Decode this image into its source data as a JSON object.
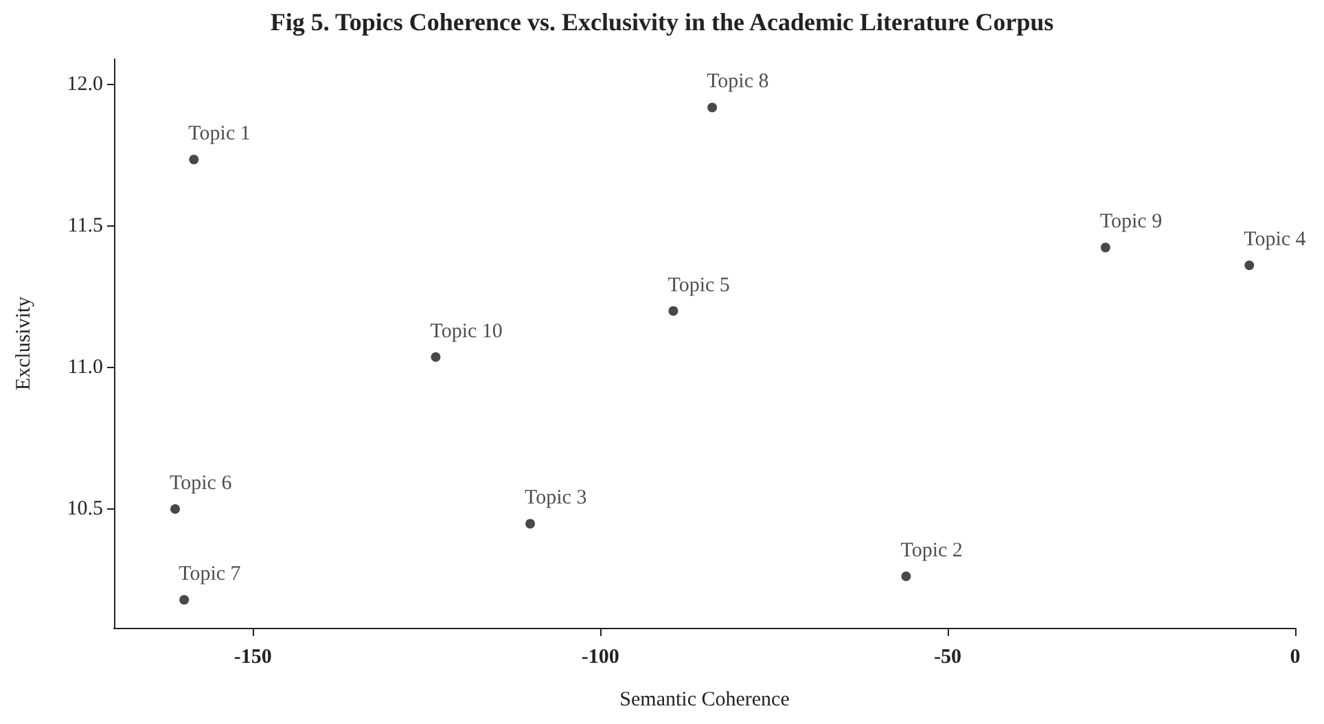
{
  "chart_data": {
    "type": "scatter",
    "title": "Fig 5. Topics Coherence vs. Exclusivity in the Academic Literature Corpus",
    "xlabel": "Semantic Coherence",
    "ylabel": "Exclusivity",
    "x": [
      -158.5,
      -56.0,
      -110.1,
      -6.6,
      -89.5,
      -161.2,
      -159.9,
      -83.9,
      -27.3,
      -123.7
    ],
    "values": [
      11.735,
      10.262,
      10.448,
      11.361,
      11.2,
      10.5,
      10.179,
      11.919,
      11.424,
      11.037
    ],
    "color": "#1a1a1a",
    "marker": "circle",
    "grid": false,
    "xlim": [
      -170,
      0
    ],
    "xticks": [
      -150,
      -100,
      -50,
      0
    ],
    "ylim": [
      10.08,
      12.09
    ],
    "yticks": [
      10.5,
      {
        "value": 11,
        "label": "11.0"
      },
      11.5,
      {
        "value": 12,
        "label": "12.0"
      }
    ],
    "annotations": [
      {
        "text": "Topic 1",
        "x": -158.5,
        "y": 11.735
      },
      {
        "text": "Topic 2",
        "x": -56.0,
        "y": 10.262
      },
      {
        "text": "Topic 3",
        "x": -110.1,
        "y": 10.448
      },
      {
        "text": "Topic 4",
        "x": -6.6,
        "y": 11.361
      },
      {
        "text": "Topic 5",
        "x": -89.5,
        "y": 11.2
      },
      {
        "text": "Topic 6",
        "x": -161.2,
        "y": 10.5
      },
      {
        "text": "Topic 7",
        "x": -159.9,
        "y": 10.179
      },
      {
        "text": "Topic 8",
        "x": -83.9,
        "y": 11.919
      },
      {
        "text": "Topic 9",
        "x": -27.3,
        "y": 11.424
      },
      {
        "text": "Topic 10",
        "x": -123.7,
        "y": 11.037
      }
    ]
  }
}
